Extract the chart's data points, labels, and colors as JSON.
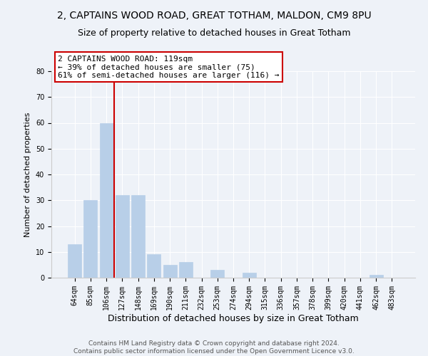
{
  "title_line1": "2, CAPTAINS WOOD ROAD, GREAT TOTHAM, MALDON, CM9 8PU",
  "title_line2": "Size of property relative to detached houses in Great Totham",
  "xlabel": "Distribution of detached houses by size in Great Totham",
  "ylabel": "Number of detached properties",
  "bar_labels": [
    "64sqm",
    "85sqm",
    "106sqm",
    "127sqm",
    "148sqm",
    "169sqm",
    "190sqm",
    "211sqm",
    "232sqm",
    "253sqm",
    "274sqm",
    "294sqm",
    "315sqm",
    "336sqm",
    "357sqm",
    "378sqm",
    "399sqm",
    "420sqm",
    "441sqm",
    "462sqm",
    "483sqm"
  ],
  "bar_values": [
    13,
    30,
    60,
    32,
    32,
    9,
    5,
    6,
    0,
    3,
    0,
    2,
    0,
    0,
    0,
    0,
    0,
    0,
    0,
    1,
    0
  ],
  "bar_color": "#b8cfe8",
  "bar_edge_color": "#b8cfe8",
  "vline_color": "#cc0000",
  "annotation_text": "2 CAPTAINS WOOD ROAD: 119sqm\n← 39% of detached houses are smaller (75)\n61% of semi-detached houses are larger (116) →",
  "box_edge_color": "#cc0000",
  "ylim": [
    0,
    80
  ],
  "yticks": [
    0,
    10,
    20,
    30,
    40,
    50,
    60,
    70,
    80
  ],
  "background_color": "#eef2f8",
  "footer_text": "Contains HM Land Registry data © Crown copyright and database right 2024.\nContains public sector information licensed under the Open Government Licence v3.0.",
  "title_fontsize": 10,
  "subtitle_fontsize": 9,
  "xlabel_fontsize": 9,
  "ylabel_fontsize": 8,
  "tick_fontsize": 7,
  "annotation_fontsize": 8,
  "footer_fontsize": 6.5
}
